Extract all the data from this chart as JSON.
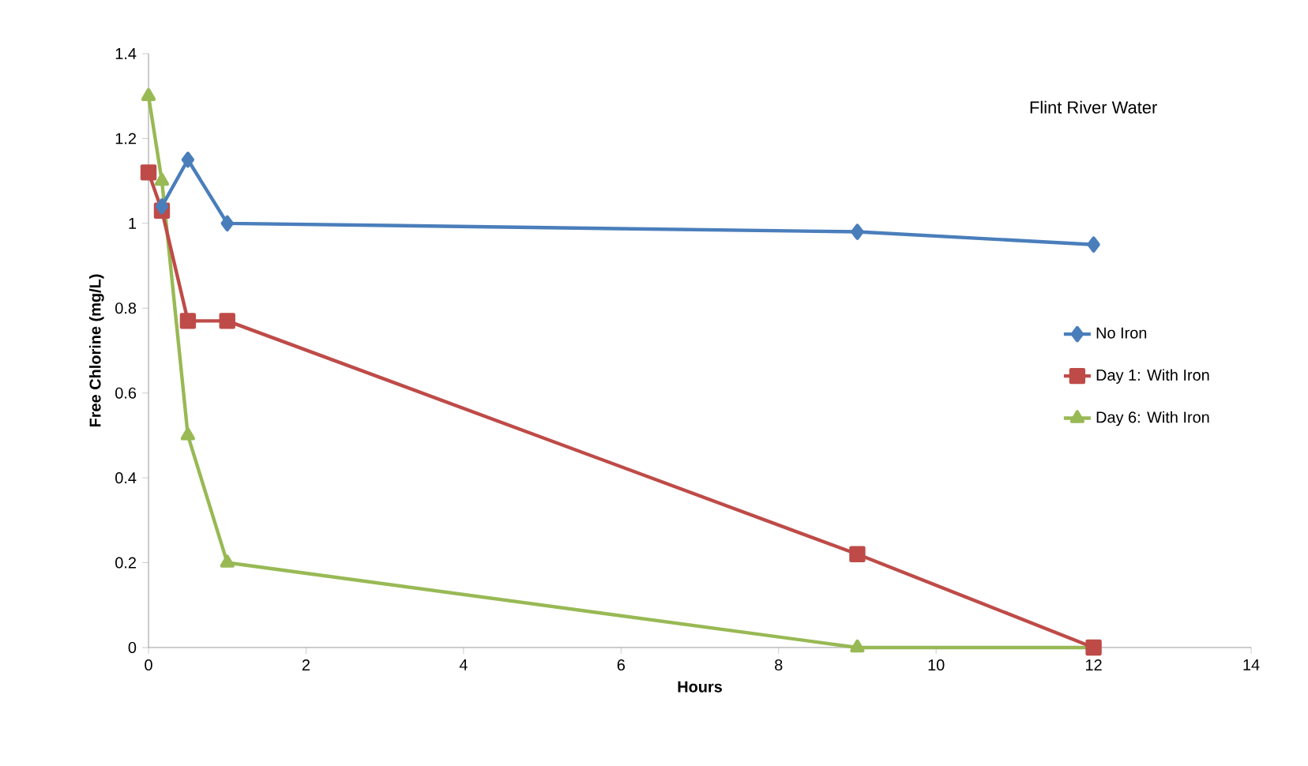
{
  "chart_data": {
    "type": "line",
    "xlabel": "Hours",
    "ylabel": "Free Chlorine (mg/L)",
    "annotations": [
      "Flint River Water"
    ],
    "xlim": [
      0,
      14
    ],
    "xticks": [
      0,
      2,
      4,
      6,
      8,
      10,
      12,
      14
    ],
    "ylim": [
      0,
      1.4
    ],
    "yticks": [
      0,
      0.2,
      0.4,
      0.6,
      0.8,
      1,
      1.2,
      1.4
    ],
    "grid": false,
    "legend": "right",
    "series": [
      {
        "name": "No Iron",
        "color": "#4a7ebb",
        "marker": "diamond",
        "x": [
          0.17,
          0.5,
          1,
          9,
          12
        ],
        "values": [
          1.04,
          1.15,
          1.0,
          0.98,
          0.95
        ]
      },
      {
        "name": "Day 1: With Iron",
        "color": "#be4b48",
        "marker": "square",
        "x": [
          0,
          0.17,
          0.5,
          1,
          9,
          12
        ],
        "values": [
          1.12,
          1.03,
          0.77,
          0.77,
          0.22,
          0
        ]
      },
      {
        "name": "Day 6: With Iron",
        "color": "#98b954",
        "marker": "triangle",
        "x": [
          0,
          0.17,
          0.5,
          1,
          9,
          12
        ],
        "values": [
          1.3,
          1.1,
          0.5,
          0.2,
          0,
          0
        ]
      }
    ]
  }
}
